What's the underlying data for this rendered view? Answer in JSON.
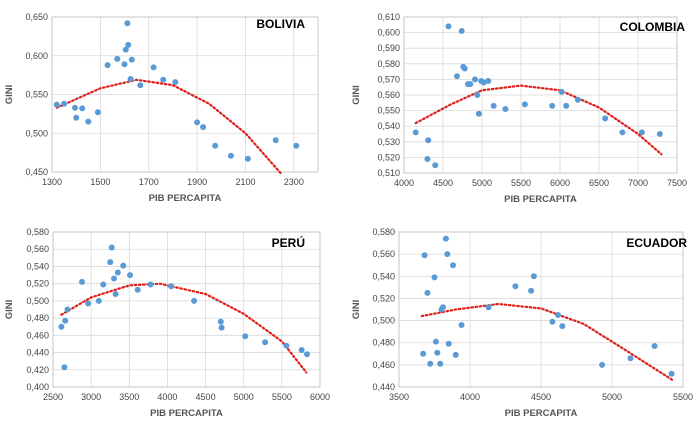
{
  "chart_data": [
    {
      "type": "scatter",
      "title": "BOLIVIA",
      "xlabel": "PIB PERCAPITA",
      "ylabel": "GINI",
      "xlim": [
        1300,
        2400
      ],
      "ylim": [
        0.45,
        0.65
      ],
      "x_ticks": [
        "1300",
        "1500",
        "1700",
        "1900",
        "2100",
        "2300"
      ],
      "y_ticks": [
        "0,450",
        "0,500",
        "0,550",
        "0,600",
        "0,650"
      ],
      "x_tick_values": [
        1300,
        1500,
        1700,
        1900,
        2100,
        2300
      ],
      "y_tick_values": [
        0.45,
        0.5,
        0.55,
        0.6,
        0.65
      ],
      "grid": true,
      "trendline": "polynomial-2",
      "series": [
        {
          "points": [
            [
              1320,
              0.537
            ],
            [
              1350,
              0.538
            ],
            [
              1395,
              0.533
            ],
            [
              1400,
              0.52
            ],
            [
              1425,
              0.532
            ],
            [
              1450,
              0.515
            ],
            [
              1490,
              0.527
            ],
            [
              1530,
              0.588
            ],
            [
              1570,
              0.596
            ],
            [
              1600,
              0.589
            ],
            [
              1605,
              0.608
            ],
            [
              1612,
              0.642
            ],
            [
              1615,
              0.614
            ],
            [
              1625,
              0.57
            ],
            [
              1630,
              0.595
            ],
            [
              1665,
              0.562
            ],
            [
              1720,
              0.585
            ],
            [
              1760,
              0.569
            ],
            [
              1810,
              0.566
            ],
            [
              1900,
              0.514
            ],
            [
              1925,
              0.508
            ],
            [
              1975,
              0.484
            ],
            [
              2040,
              0.471
            ],
            [
              2110,
              0.467
            ],
            [
              2225,
              0.491
            ],
            [
              2310,
              0.484
            ]
          ]
        }
      ],
      "fit": [
        1320,
        2250,
        [
          [
            1320,
            0.533
          ],
          [
            1500,
            0.558
          ],
          [
            1650,
            0.569
          ],
          [
            1800,
            0.562
          ],
          [
            1950,
            0.538
          ],
          [
            2100,
            0.5
          ],
          [
            2250,
            0.447
          ]
        ]
      ]
    },
    {
      "type": "scatter",
      "title": "COLOMBIA",
      "xlabel": "PIB PERCAPITA",
      "ylabel": "GINI",
      "xlim": [
        4000,
        7500
      ],
      "ylim": [
        0.51,
        0.61
      ],
      "x_ticks": [
        "4000",
        "4500",
        "5000",
        "5500",
        "6000",
        "6500",
        "7000",
        "7500"
      ],
      "y_ticks": [
        "0,510",
        "0,520",
        "0,530",
        "0,540",
        "0,550",
        "0,560",
        "0,570",
        "0,580",
        "0,590",
        "0,600",
        "0,610"
      ],
      "x_tick_values": [
        4000,
        4500,
        5000,
        5500,
        6000,
        6500,
        7000,
        7500
      ],
      "y_tick_values": [
        0.51,
        0.52,
        0.53,
        0.54,
        0.55,
        0.56,
        0.57,
        0.58,
        0.59,
        0.6,
        0.61
      ],
      "grid": true,
      "trendline": "polynomial-2",
      "series": [
        {
          "points": [
            [
              4150,
              0.536
            ],
            [
              4300,
              0.519
            ],
            [
              4310,
              0.531
            ],
            [
              4400,
              0.515
            ],
            [
              4570,
              0.604
            ],
            [
              4680,
              0.572
            ],
            [
              4740,
              0.601
            ],
            [
              4760,
              0.578
            ],
            [
              4780,
              0.577
            ],
            [
              4820,
              0.567
            ],
            [
              4850,
              0.567
            ],
            [
              4910,
              0.57
            ],
            [
              4940,
              0.56
            ],
            [
              4960,
              0.548
            ],
            [
              4990,
              0.569
            ],
            [
              5020,
              0.568
            ],
            [
              5080,
              0.569
            ],
            [
              5150,
              0.553
            ],
            [
              5300,
              0.551
            ],
            [
              5550,
              0.554
            ],
            [
              5900,
              0.553
            ],
            [
              6020,
              0.562
            ],
            [
              6080,
              0.553
            ],
            [
              6230,
              0.557
            ],
            [
              6580,
              0.545
            ],
            [
              6800,
              0.536
            ],
            [
              7050,
              0.536
            ],
            [
              7280,
              0.535
            ]
          ]
        }
      ],
      "fit": [
        4150,
        7300,
        [
          [
            4150,
            0.542
          ],
          [
            4600,
            0.554
          ],
          [
            5000,
            0.563
          ],
          [
            5500,
            0.566
          ],
          [
            6000,
            0.563
          ],
          [
            6500,
            0.552
          ],
          [
            7000,
            0.535
          ],
          [
            7300,
            0.522
          ]
        ]
      ]
    },
    {
      "type": "scatter",
      "title": "PERÚ",
      "xlabel": "PIB PERCAPITA",
      "ylabel": "GINI",
      "xlim": [
        2500,
        6000
      ],
      "ylim": [
        0.4,
        0.58
      ],
      "x_ticks": [
        "2500",
        "3000",
        "3500",
        "4000",
        "4500",
        "5000",
        "5500",
        "6000"
      ],
      "y_ticks": [
        "0,400",
        "0,420",
        "0,440",
        "0,460",
        "0,480",
        "0,500",
        "0,520",
        "0,540",
        "0,560",
        "0,580"
      ],
      "x_tick_values": [
        2500,
        3000,
        3500,
        4000,
        4500,
        5000,
        5500,
        6000
      ],
      "y_tick_values": [
        0.4,
        0.42,
        0.44,
        0.46,
        0.48,
        0.5,
        0.52,
        0.54,
        0.56,
        0.58
      ],
      "grid": true,
      "trendline": "polynomial-2",
      "series": [
        {
          "points": [
            [
              2610,
              0.47
            ],
            [
              2650,
              0.423
            ],
            [
              2660,
              0.477
            ],
            [
              2690,
              0.49
            ],
            [
              2880,
              0.522
            ],
            [
              2960,
              0.497
            ],
            [
              3100,
              0.5
            ],
            [
              3160,
              0.519
            ],
            [
              3250,
              0.545
            ],
            [
              3270,
              0.562
            ],
            [
              3300,
              0.526
            ],
            [
              3320,
              0.508
            ],
            [
              3350,
              0.533
            ],
            [
              3420,
              0.541
            ],
            [
              3510,
              0.53
            ],
            [
              3610,
              0.513
            ],
            [
              3780,
              0.519
            ],
            [
              4050,
              0.517
            ],
            [
              4350,
              0.5
            ],
            [
              4700,
              0.476
            ],
            [
              4710,
              0.469
            ],
            [
              5020,
              0.459
            ],
            [
              5280,
              0.452
            ],
            [
              5560,
              0.448
            ],
            [
              5760,
              0.443
            ],
            [
              5830,
              0.438
            ]
          ]
        }
      ],
      "fit": [
        2610,
        5820,
        [
          [
            2610,
            0.484
          ],
          [
            3000,
            0.504
          ],
          [
            3500,
            0.518
          ],
          [
            3900,
            0.52
          ],
          [
            4500,
            0.508
          ],
          [
            5000,
            0.485
          ],
          [
            5500,
            0.453
          ],
          [
            5820,
            0.417
          ]
        ]
      ]
    },
    {
      "type": "scatter",
      "title": "ECUADOR",
      "xlabel": "PIB PERCAPITA",
      "ylabel": "GINI",
      "xlim": [
        3500,
        5500
      ],
      "ylim": [
        0.44,
        0.58
      ],
      "x_ticks": [
        "3500",
        "4000",
        "4500",
        "5000",
        "5500"
      ],
      "y_ticks": [
        "0,440",
        "0,460",
        "0,480",
        "0,500",
        "0,520",
        "0,540",
        "0,560",
        "0,580"
      ],
      "x_tick_values": [
        3500,
        4000,
        4500,
        5000,
        5500
      ],
      "y_tick_values": [
        0.44,
        0.46,
        0.48,
        0.5,
        0.52,
        0.54,
        0.56,
        0.58
      ],
      "grid": true,
      "trendline": "polynomial-2",
      "series": [
        {
          "points": [
            [
              3670,
              0.47
            ],
            [
              3680,
              0.559
            ],
            [
              3700,
              0.525
            ],
            [
              3720,
              0.461
            ],
            [
              3750,
              0.539
            ],
            [
              3760,
              0.481
            ],
            [
              3770,
              0.471
            ],
            [
              3790,
              0.461
            ],
            [
              3800,
              0.51
            ],
            [
              3810,
              0.512
            ],
            [
              3830,
              0.574
            ],
            [
              3840,
              0.56
            ],
            [
              3850,
              0.479
            ],
            [
              3880,
              0.55
            ],
            [
              3900,
              0.469
            ],
            [
              3940,
              0.496
            ],
            [
              4130,
              0.512
            ],
            [
              4320,
              0.531
            ],
            [
              4430,
              0.527
            ],
            [
              4450,
              0.54
            ],
            [
              4580,
              0.499
            ],
            [
              4620,
              0.505
            ],
            [
              4650,
              0.495
            ],
            [
              4930,
              0.46
            ],
            [
              5130,
              0.466
            ],
            [
              5300,
              0.477
            ],
            [
              5420,
              0.452
            ]
          ]
        }
      ],
      "fit": [
        3660,
        5430,
        [
          [
            3660,
            0.504
          ],
          [
            3900,
            0.51
          ],
          [
            4200,
            0.515
          ],
          [
            4500,
            0.511
          ],
          [
            4800,
            0.497
          ],
          [
            5100,
            0.473
          ],
          [
            5430,
            0.446
          ]
        ]
      ]
    }
  ]
}
